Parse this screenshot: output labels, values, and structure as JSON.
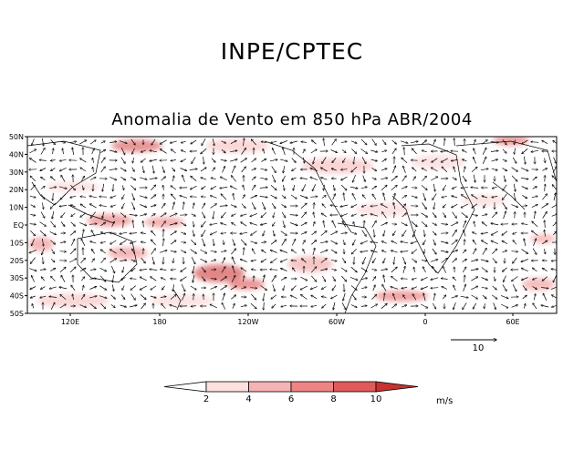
{
  "header": {
    "title": "INPE/CPTEC"
  },
  "map": {
    "title": "Anomalia de Vento em 850 hPa ABR/2004",
    "lat_labels": [
      "50N",
      "40N",
      "30N",
      "20N",
      "10N",
      "EQ",
      "10S",
      "20S",
      "30S",
      "40S",
      "50S"
    ],
    "lon_labels": [
      "120E",
      "180",
      "120W",
      "60W",
      "0",
      "60E"
    ],
    "reference_vector": {
      "label": "10"
    },
    "colors": {
      "land": "#d6d6d6",
      "ocean": "#ffffff",
      "vector": "#000000"
    }
  },
  "colorbar": {
    "levels": [
      "2",
      "4",
      "6",
      "8",
      "10"
    ],
    "unit": "m/s",
    "colors": [
      "#ffffff",
      "#fde0e0",
      "#f6b3b3",
      "#ee8484",
      "#e05a5a",
      "#c73333"
    ]
  }
}
